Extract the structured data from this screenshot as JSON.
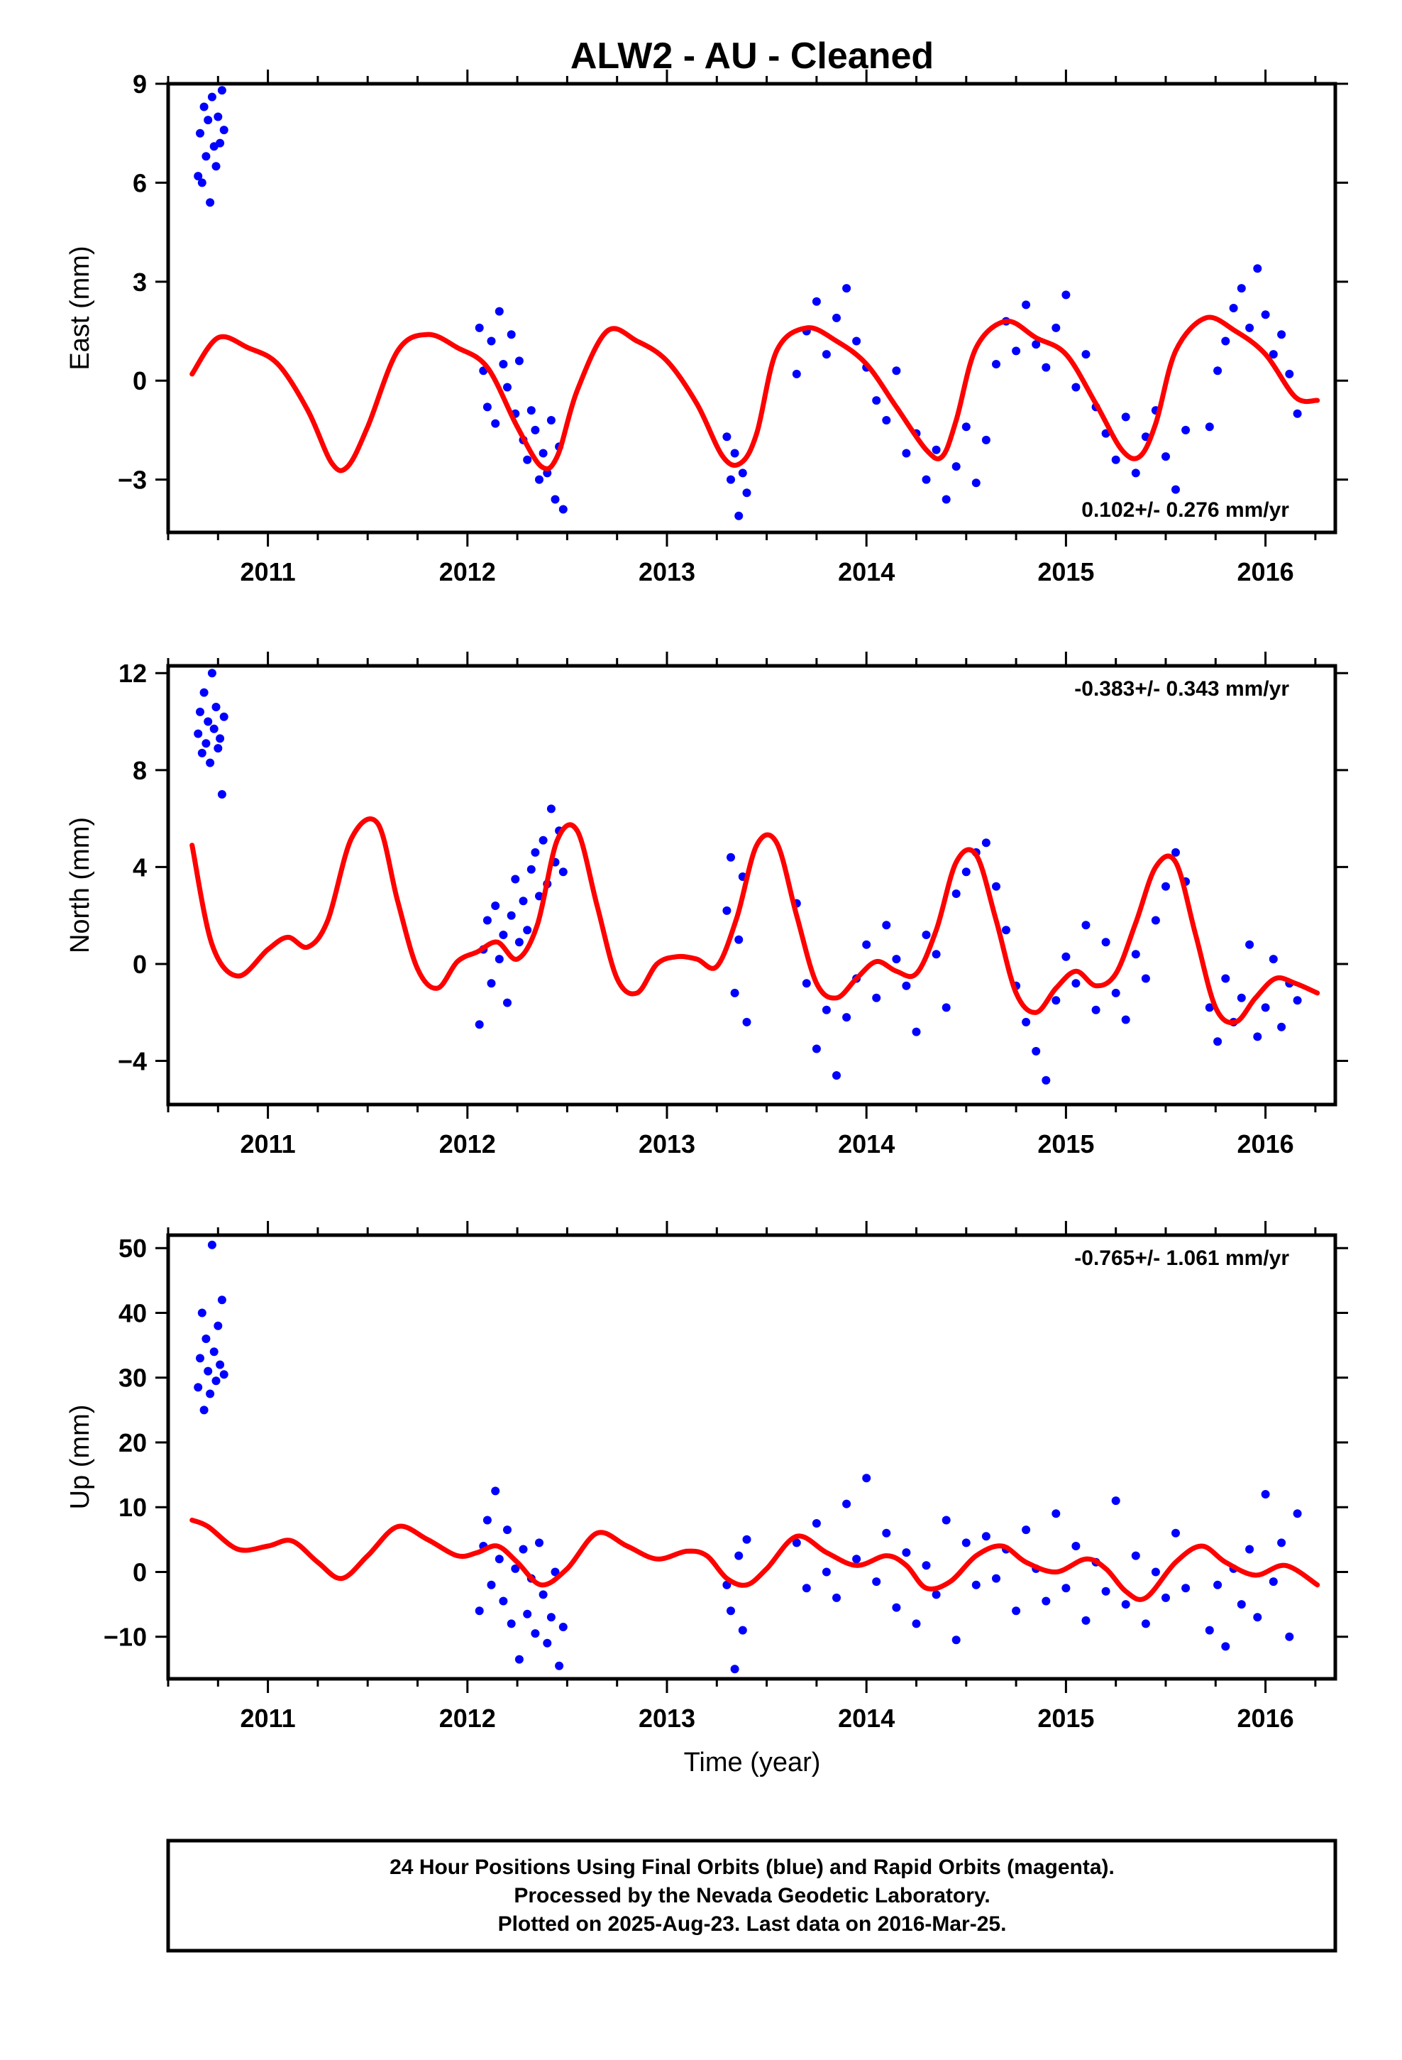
{
  "title": "ALW2  - AU - Cleaned",
  "x_axis_label": "Time (year)",
  "footer": {
    "lines": [
      "24 Hour Positions Using Final Orbits (blue) and Rapid Orbits (magenta).",
      "Processed by the Nevada Geodetic Laboratory.",
      "Plotted on 2025-Aug-23. Last data on 2016-Mar-25."
    ]
  },
  "colors": {
    "points": "#0000ff",
    "model": "#ff0000",
    "axes": "#000000"
  },
  "chart_data": [
    {
      "type": "scatter",
      "panel": "east",
      "ylabel": "East (mm)",
      "rate_label": "0.102+/- 0.276 mm/yr",
      "rate_position": "bottom-right",
      "xlim": [
        2010.5,
        2016.35
      ],
      "ylim": [
        -4.6,
        9.0
      ],
      "x_ticks": [
        "2011",
        "2012",
        "2013",
        "2014",
        "2015",
        "2016"
      ],
      "y_ticks": [
        "9",
        "6",
        "3",
        "0",
        "−3"
      ],
      "series": [
        {
          "kind": "points",
          "x": [
            2010.65,
            2010.66,
            2010.67,
            2010.68,
            2010.69,
            2010.7,
            2010.71,
            2010.72,
            2010.73,
            2010.74,
            2010.75,
            2010.76,
            2010.77,
            2010.78,
            2012.06,
            2012.08,
            2012.1,
            2012.12,
            2012.14,
            2012.16,
            2012.18,
            2012.2,
            2012.22,
            2012.24,
            2012.26,
            2012.28,
            2012.3,
            2012.32,
            2012.34,
            2012.36,
            2012.38,
            2012.4,
            2012.42,
            2012.44,
            2012.46,
            2012.48,
            2013.3,
            2013.32,
            2013.34,
            2013.36,
            2013.38,
            2013.4,
            2013.65,
            2013.7,
            2013.75,
            2013.8,
            2013.85,
            2013.9,
            2013.95,
            2014.0,
            2014.05,
            2014.1,
            2014.15,
            2014.2,
            2014.25,
            2014.3,
            2014.35,
            2014.4,
            2014.45,
            2014.5,
            2014.55,
            2014.6,
            2014.65,
            2014.7,
            2014.75,
            2014.8,
            2014.85,
            2014.9,
            2014.95,
            2015.0,
            2015.05,
            2015.1,
            2015.15,
            2015.2,
            2015.25,
            2015.3,
            2015.35,
            2015.4,
            2015.45,
            2015.5,
            2015.55,
            2015.6,
            2015.72,
            2015.76,
            2015.8,
            2015.84,
            2015.88,
            2015.92,
            2015.96,
            2016.0,
            2016.04,
            2016.08,
            2016.12,
            2016.16
          ],
          "y": [
            6.2,
            7.5,
            6.0,
            8.3,
            6.8,
            7.9,
            5.4,
            8.6,
            7.1,
            6.5,
            8.0,
            7.2,
            8.8,
            7.6,
            1.6,
            0.3,
            -0.8,
            1.2,
            -1.3,
            2.1,
            0.5,
            -0.2,
            1.4,
            -1.0,
            0.6,
            -1.8,
            -2.4,
            -0.9,
            -1.5,
            -3.0,
            -2.2,
            -2.8,
            -1.2,
            -3.6,
            -2.0,
            -3.9,
            -1.7,
            -3.0,
            -2.2,
            -4.1,
            -2.8,
            -3.4,
            0.2,
            1.5,
            2.4,
            0.8,
            1.9,
            2.8,
            1.2,
            0.4,
            -0.6,
            -1.2,
            0.3,
            -2.2,
            -1.6,
            -3.0,
            -2.1,
            -3.6,
            -2.6,
            -1.4,
            -3.1,
            -1.8,
            0.5,
            1.8,
            0.9,
            2.3,
            1.1,
            0.4,
            1.6,
            2.6,
            -0.2,
            0.8,
            -0.8,
            -1.6,
            -2.4,
            -1.1,
            -2.8,
            -1.7,
            -0.9,
            -2.3,
            -3.3,
            -1.5,
            -1.4,
            0.3,
            1.2,
            2.2,
            2.8,
            1.6,
            3.4,
            2.0,
            0.8,
            1.4,
            0.2,
            -1.0
          ]
        },
        {
          "kind": "model",
          "x": [
            2010.62,
            2010.75,
            2010.9,
            2011.05,
            2011.2,
            2011.32,
            2011.4,
            2011.5,
            2011.65,
            2011.8,
            2011.95,
            2012.1,
            2012.25,
            2012.37,
            2012.45,
            2012.55,
            2012.7,
            2012.85,
            2013.0,
            2013.15,
            2013.28,
            2013.37,
            2013.45,
            2013.55,
            2013.7,
            2013.85,
            2014.0,
            2014.15,
            2014.3,
            2014.38,
            2014.45,
            2014.55,
            2014.7,
            2014.85,
            2015.0,
            2015.15,
            2015.28,
            2015.37,
            2015.45,
            2015.55,
            2015.7,
            2015.85,
            2016.0,
            2016.15,
            2016.26
          ],
          "y": [
            0.2,
            1.3,
            1.0,
            0.5,
            -0.9,
            -2.5,
            -2.6,
            -1.4,
            0.9,
            1.4,
            1.0,
            0.4,
            -1.4,
            -2.6,
            -2.3,
            -0.3,
            1.5,
            1.2,
            0.6,
            -0.7,
            -2.3,
            -2.5,
            -1.6,
            0.9,
            1.6,
            1.2,
            0.5,
            -0.8,
            -2.1,
            -2.3,
            -1.2,
            1.0,
            1.8,
            1.3,
            0.8,
            -0.7,
            -2.1,
            -2.3,
            -1.3,
            0.9,
            1.9,
            1.5,
            0.8,
            -0.5,
            -0.6
          ]
        }
      ]
    },
    {
      "type": "scatter",
      "panel": "north",
      "ylabel": "North (mm)",
      "rate_label": "-0.383+/- 0.343 mm/yr",
      "rate_position": "top-right",
      "xlim": [
        2010.5,
        2016.35
      ],
      "ylim": [
        -5.8,
        12.3
      ],
      "x_ticks": [
        "2011",
        "2012",
        "2013",
        "2014",
        "2015",
        "2016"
      ],
      "y_ticks": [
        "12",
        "8",
        "4",
        "0",
        "−4"
      ],
      "series": [
        {
          "kind": "points",
          "x": [
            2010.65,
            2010.66,
            2010.67,
            2010.68,
            2010.69,
            2010.7,
            2010.71,
            2010.72,
            2010.73,
            2010.74,
            2010.75,
            2010.76,
            2010.77,
            2010.78,
            2012.06,
            2012.08,
            2012.1,
            2012.12,
            2012.14,
            2012.16,
            2012.18,
            2012.2,
            2012.22,
            2012.24,
            2012.26,
            2012.28,
            2012.3,
            2012.32,
            2012.34,
            2012.36,
            2012.38,
            2012.4,
            2012.42,
            2012.44,
            2012.46,
            2012.48,
            2013.3,
            2013.32,
            2013.34,
            2013.36,
            2013.38,
            2013.4,
            2013.65,
            2013.7,
            2013.75,
            2013.8,
            2013.85,
            2013.9,
            2013.95,
            2014.0,
            2014.05,
            2014.1,
            2014.15,
            2014.2,
            2014.25,
            2014.3,
            2014.35,
            2014.4,
            2014.45,
            2014.5,
            2014.55,
            2014.6,
            2014.65,
            2014.7,
            2014.75,
            2014.8,
            2014.85,
            2014.9,
            2014.95,
            2015.0,
            2015.05,
            2015.1,
            2015.15,
            2015.2,
            2015.25,
            2015.3,
            2015.35,
            2015.4,
            2015.45,
            2015.5,
            2015.55,
            2015.6,
            2015.72,
            2015.76,
            2015.8,
            2015.84,
            2015.88,
            2015.92,
            2015.96,
            2016.0,
            2016.04,
            2016.08,
            2016.12,
            2016.16
          ],
          "y": [
            9.5,
            10.4,
            8.7,
            11.2,
            9.1,
            10.0,
            8.3,
            12.0,
            9.7,
            10.6,
            8.9,
            9.3,
            7.0,
            10.2,
            -2.5,
            0.6,
            1.8,
            -0.8,
            2.4,
            0.2,
            1.2,
            -1.6,
            2.0,
            3.5,
            0.9,
            2.6,
            1.4,
            3.9,
            4.6,
            2.8,
            5.1,
            3.3,
            6.4,
            4.2,
            5.5,
            3.8,
            2.2,
            4.4,
            -1.2,
            1.0,
            3.6,
            -2.4,
            2.5,
            -0.8,
            -3.5,
            -1.9,
            -4.6,
            -2.2,
            -0.6,
            0.8,
            -1.4,
            1.6,
            0.2,
            -0.9,
            -2.8,
            1.2,
            0.4,
            -1.8,
            2.9,
            3.8,
            4.6,
            5.0,
            3.2,
            1.4,
            -0.9,
            -2.4,
            -3.6,
            -4.8,
            -1.5,
            0.3,
            -0.8,
            1.6,
            -1.9,
            0.9,
            -1.2,
            -2.3,
            0.4,
            -0.6,
            1.8,
            3.2,
            4.6,
            3.4,
            -1.8,
            -3.2,
            -0.6,
            -2.4,
            -1.4,
            0.8,
            -3.0,
            -1.8,
            0.2,
            -2.6,
            -0.8,
            -1.5
          ]
        },
        {
          "kind": "model",
          "x": [
            2010.62,
            2010.72,
            2010.85,
            2011.0,
            2011.1,
            2011.2,
            2011.3,
            2011.42,
            2011.55,
            2011.65,
            2011.75,
            2011.85,
            2011.95,
            2012.05,
            2012.15,
            2012.25,
            2012.35,
            2012.45,
            2012.55,
            2012.65,
            2012.75,
            2012.85,
            2012.95,
            2013.05,
            2013.15,
            2013.25,
            2013.35,
            2013.45,
            2013.55,
            2013.65,
            2013.75,
            2013.85,
            2013.95,
            2014.05,
            2014.15,
            2014.25,
            2014.35,
            2014.45,
            2014.55,
            2014.65,
            2014.75,
            2014.85,
            2014.95,
            2015.05,
            2015.15,
            2015.25,
            2015.35,
            2015.45,
            2015.55,
            2015.65,
            2015.75,
            2015.85,
            2015.95,
            2016.05,
            2016.15,
            2016.26
          ],
          "y": [
            4.9,
            0.8,
            -0.5,
            0.6,
            1.1,
            0.7,
            1.8,
            5.2,
            5.8,
            2.6,
            -0.2,
            -1.0,
            0.1,
            0.5,
            0.9,
            0.2,
            1.6,
            5.1,
            5.5,
            2.4,
            -0.6,
            -1.2,
            0.0,
            0.3,
            0.2,
            -0.1,
            1.9,
            4.9,
            5.0,
            2.0,
            -0.8,
            -1.4,
            -0.6,
            0.1,
            -0.3,
            -0.4,
            1.4,
            4.2,
            4.5,
            1.8,
            -1.2,
            -2.0,
            -1.0,
            -0.3,
            -0.9,
            -0.4,
            1.7,
            4.0,
            4.2,
            1.2,
            -1.8,
            -2.4,
            -1.4,
            -0.6,
            -0.8,
            -1.2
          ]
        }
      ]
    },
    {
      "type": "scatter",
      "panel": "up",
      "ylabel": "Up (mm)",
      "rate_label": "-0.765+/- 1.061 mm/yr",
      "rate_position": "top-right",
      "xlim": [
        2010.5,
        2016.35
      ],
      "ylim": [
        -16.5,
        52.0
      ],
      "x_ticks": [
        "2011",
        "2012",
        "2013",
        "2014",
        "2015",
        "2016"
      ],
      "y_ticks": [
        "50",
        "40",
        "30",
        "20",
        "10",
        "0",
        "−10"
      ],
      "series": [
        {
          "kind": "points",
          "x": [
            2010.65,
            2010.66,
            2010.67,
            2010.68,
            2010.69,
            2010.7,
            2010.71,
            2010.72,
            2010.73,
            2010.74,
            2010.75,
            2010.76,
            2010.77,
            2010.78,
            2012.06,
            2012.08,
            2012.1,
            2012.12,
            2012.14,
            2012.16,
            2012.18,
            2012.2,
            2012.22,
            2012.24,
            2012.26,
            2012.28,
            2012.3,
            2012.32,
            2012.34,
            2012.36,
            2012.38,
            2012.4,
            2012.42,
            2012.44,
            2012.46,
            2012.48,
            2013.3,
            2013.32,
            2013.34,
            2013.36,
            2013.38,
            2013.4,
            2013.65,
            2013.7,
            2013.75,
            2013.8,
            2013.85,
            2013.9,
            2013.95,
            2014.0,
            2014.05,
            2014.1,
            2014.15,
            2014.2,
            2014.25,
            2014.3,
            2014.35,
            2014.4,
            2014.45,
            2014.5,
            2014.55,
            2014.6,
            2014.65,
            2014.7,
            2014.75,
            2014.8,
            2014.85,
            2014.9,
            2014.95,
            2015.0,
            2015.05,
            2015.1,
            2015.15,
            2015.2,
            2015.25,
            2015.3,
            2015.35,
            2015.4,
            2015.45,
            2015.5,
            2015.55,
            2015.6,
            2015.72,
            2015.76,
            2015.8,
            2015.84,
            2015.88,
            2015.92,
            2015.96,
            2016.0,
            2016.04,
            2016.08,
            2016.12,
            2016.16
          ],
          "y": [
            28.5,
            33.0,
            40.0,
            25.0,
            36.0,
            31.0,
            27.5,
            50.5,
            34.0,
            29.5,
            38.0,
            32.0,
            42.0,
            30.5,
            -6.0,
            4.0,
            8.0,
            -2.0,
            12.5,
            2.0,
            -4.5,
            6.5,
            -8.0,
            0.5,
            -13.5,
            3.5,
            -6.5,
            -1.0,
            -9.5,
            4.5,
            -3.5,
            -11.0,
            -7.0,
            0.0,
            -14.5,
            -8.5,
            -2.0,
            -6.0,
            -15.0,
            2.5,
            -9.0,
            5.0,
            4.5,
            -2.5,
            7.5,
            0.0,
            -4.0,
            10.5,
            2.0,
            14.5,
            -1.5,
            6.0,
            -5.5,
            3.0,
            -8.0,
            1.0,
            -3.5,
            8.0,
            -10.5,
            4.5,
            -2.0,
            5.5,
            -1.0,
            3.5,
            -6.0,
            6.5,
            0.5,
            -4.5,
            9.0,
            -2.5,
            4.0,
            -7.5,
            1.5,
            -3.0,
            11.0,
            -5.0,
            2.5,
            -8.0,
            0.0,
            -4.0,
            6.0,
            -2.5,
            -9.0,
            -2.0,
            -11.5,
            0.5,
            -5.0,
            3.5,
            -7.0,
            12.0,
            -1.5,
            4.5,
            -10.0,
            9.0
          ]
        },
        {
          "kind": "model",
          "x": [
            2010.62,
            2010.7,
            2010.85,
            2011.0,
            2011.12,
            2011.25,
            2011.37,
            2011.5,
            2011.65,
            2011.8,
            2011.95,
            2012.05,
            2012.15,
            2012.25,
            2012.37,
            2012.5,
            2012.65,
            2012.8,
            2012.95,
            2013.1,
            2013.2,
            2013.3,
            2013.4,
            2013.5,
            2013.65,
            2013.8,
            2013.95,
            2014.1,
            2014.2,
            2014.3,
            2014.42,
            2014.55,
            2014.68,
            2014.8,
            2014.95,
            2015.1,
            2015.2,
            2015.3,
            2015.4,
            2015.55,
            2015.68,
            2015.8,
            2015.95,
            2016.1,
            2016.26
          ],
          "y": [
            8.0,
            7.0,
            3.5,
            4.0,
            4.8,
            1.5,
            -1.0,
            2.5,
            7.0,
            5.0,
            2.5,
            3.0,
            4.0,
            1.5,
            -2.0,
            0.5,
            6.0,
            4.0,
            2.0,
            3.2,
            2.5,
            -1.0,
            -2.0,
            0.5,
            5.5,
            3.0,
            1.0,
            2.5,
            1.0,
            -2.5,
            -1.5,
            2.5,
            4.0,
            1.5,
            0.0,
            2.0,
            0.5,
            -3.0,
            -4.0,
            1.5,
            4.0,
            1.5,
            -0.5,
            1.0,
            -2.0
          ]
        }
      ]
    }
  ]
}
